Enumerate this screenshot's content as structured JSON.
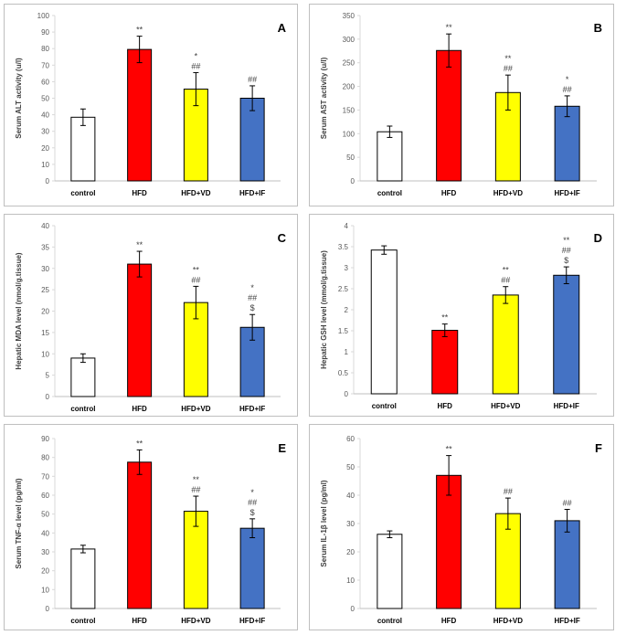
{
  "chart_data": [
    {
      "type": "bar",
      "panel_letter": "A",
      "categories": [
        "control",
        "HFD",
        "HFD+VD",
        "HFD+IF"
      ],
      "values": [
        38.5,
        79.5,
        55.5,
        50
      ],
      "errors": [
        5,
        8,
        10,
        7.5
      ],
      "annotations": [
        [],
        [
          "**"
        ],
        [
          "*",
          "##"
        ],
        [
          "##"
        ]
      ],
      "ylabel": "Serum ALT activity (u/l)",
      "ylim": [
        0,
        100
      ],
      "yticks": [
        0,
        10,
        20,
        30,
        40,
        50,
        60,
        70,
        80,
        90,
        100
      ]
    },
    {
      "type": "bar",
      "panel_letter": "B",
      "categories": [
        "control",
        "HFD",
        "HFD+VD",
        "HFD+IF"
      ],
      "values": [
        104,
        276,
        187,
        158
      ],
      "errors": [
        12,
        35,
        37,
        22
      ],
      "annotations": [
        [],
        [
          "**"
        ],
        [
          "**",
          "##"
        ],
        [
          "*",
          "##"
        ]
      ],
      "ylabel": "Serum AST activity (u/l)",
      "ylim": [
        0,
        350
      ],
      "yticks": [
        0,
        50,
        100,
        150,
        200,
        250,
        300,
        350
      ]
    },
    {
      "type": "bar",
      "panel_letter": "C",
      "categories": [
        "control",
        "HFD",
        "HFD+VD",
        "HFD+IF"
      ],
      "values": [
        9,
        31,
        22,
        16.2
      ],
      "errors": [
        1,
        3,
        3.8,
        3
      ],
      "annotations": [
        [],
        [
          "**"
        ],
        [
          "**",
          "##"
        ],
        [
          "*",
          "##",
          "$"
        ]
      ],
      "ylabel": "Hepatic MDA level (nmol/g.tissue)",
      "ylim": [
        0,
        40
      ],
      "yticks": [
        0,
        5,
        10,
        15,
        20,
        25,
        30,
        35,
        40
      ]
    },
    {
      "type": "bar",
      "panel_letter": "D",
      "categories": [
        "control",
        "HFD",
        "HFD+VD",
        "HFD+IF"
      ],
      "values": [
        3.42,
        1.51,
        2.35,
        2.82
      ],
      "errors": [
        0.1,
        0.15,
        0.2,
        0.2
      ],
      "annotations": [
        [],
        [
          "**"
        ],
        [
          "**",
          "##"
        ],
        [
          "**",
          "##",
          "$"
        ]
      ],
      "ylabel": "Hepatic GSH level (mmol/g.tissue)",
      "ylim": [
        0,
        4
      ],
      "yticks": [
        "0",
        "0.5",
        "1",
        "1.5",
        "2",
        "2.5",
        "3",
        "3.5",
        "4"
      ]
    },
    {
      "type": "bar",
      "panel_letter": "E",
      "categories": [
        "control",
        "HFD",
        "HFD+VD",
        "HFD+IF"
      ],
      "values": [
        31.5,
        77.5,
        51.5,
        42.5
      ],
      "errors": [
        2,
        6.5,
        8,
        5
      ],
      "annotations": [
        [],
        [
          "**"
        ],
        [
          "**",
          "##"
        ],
        [
          "*",
          "##",
          "$"
        ]
      ],
      "ylabel": "Serum TNF-α level (pg/ml)",
      "ylim": [
        0,
        90
      ],
      "yticks": [
        0,
        10,
        20,
        30,
        40,
        50,
        60,
        70,
        80,
        90
      ]
    },
    {
      "type": "bar",
      "panel_letter": "F",
      "categories": [
        "control",
        "HFD",
        "HFD+VD",
        "HFD+IF"
      ],
      "values": [
        26.2,
        47,
        33.5,
        31
      ],
      "errors": [
        1.2,
        7,
        5.5,
        4
      ],
      "annotations": [
        [],
        [
          "**"
        ],
        [
          "##"
        ],
        [
          "##"
        ]
      ],
      "ylabel": "Serum IL-1β level (pg/ml)",
      "ylim": [
        0,
        60
      ],
      "yticks": [
        0,
        10,
        20,
        30,
        40,
        50,
        60
      ]
    }
  ],
  "colors": {
    "control": "#ffffff",
    "HFD": "#ff0000",
    "HFD+VD": "#ffff00",
    "HFD+IF": "#4472c4"
  }
}
